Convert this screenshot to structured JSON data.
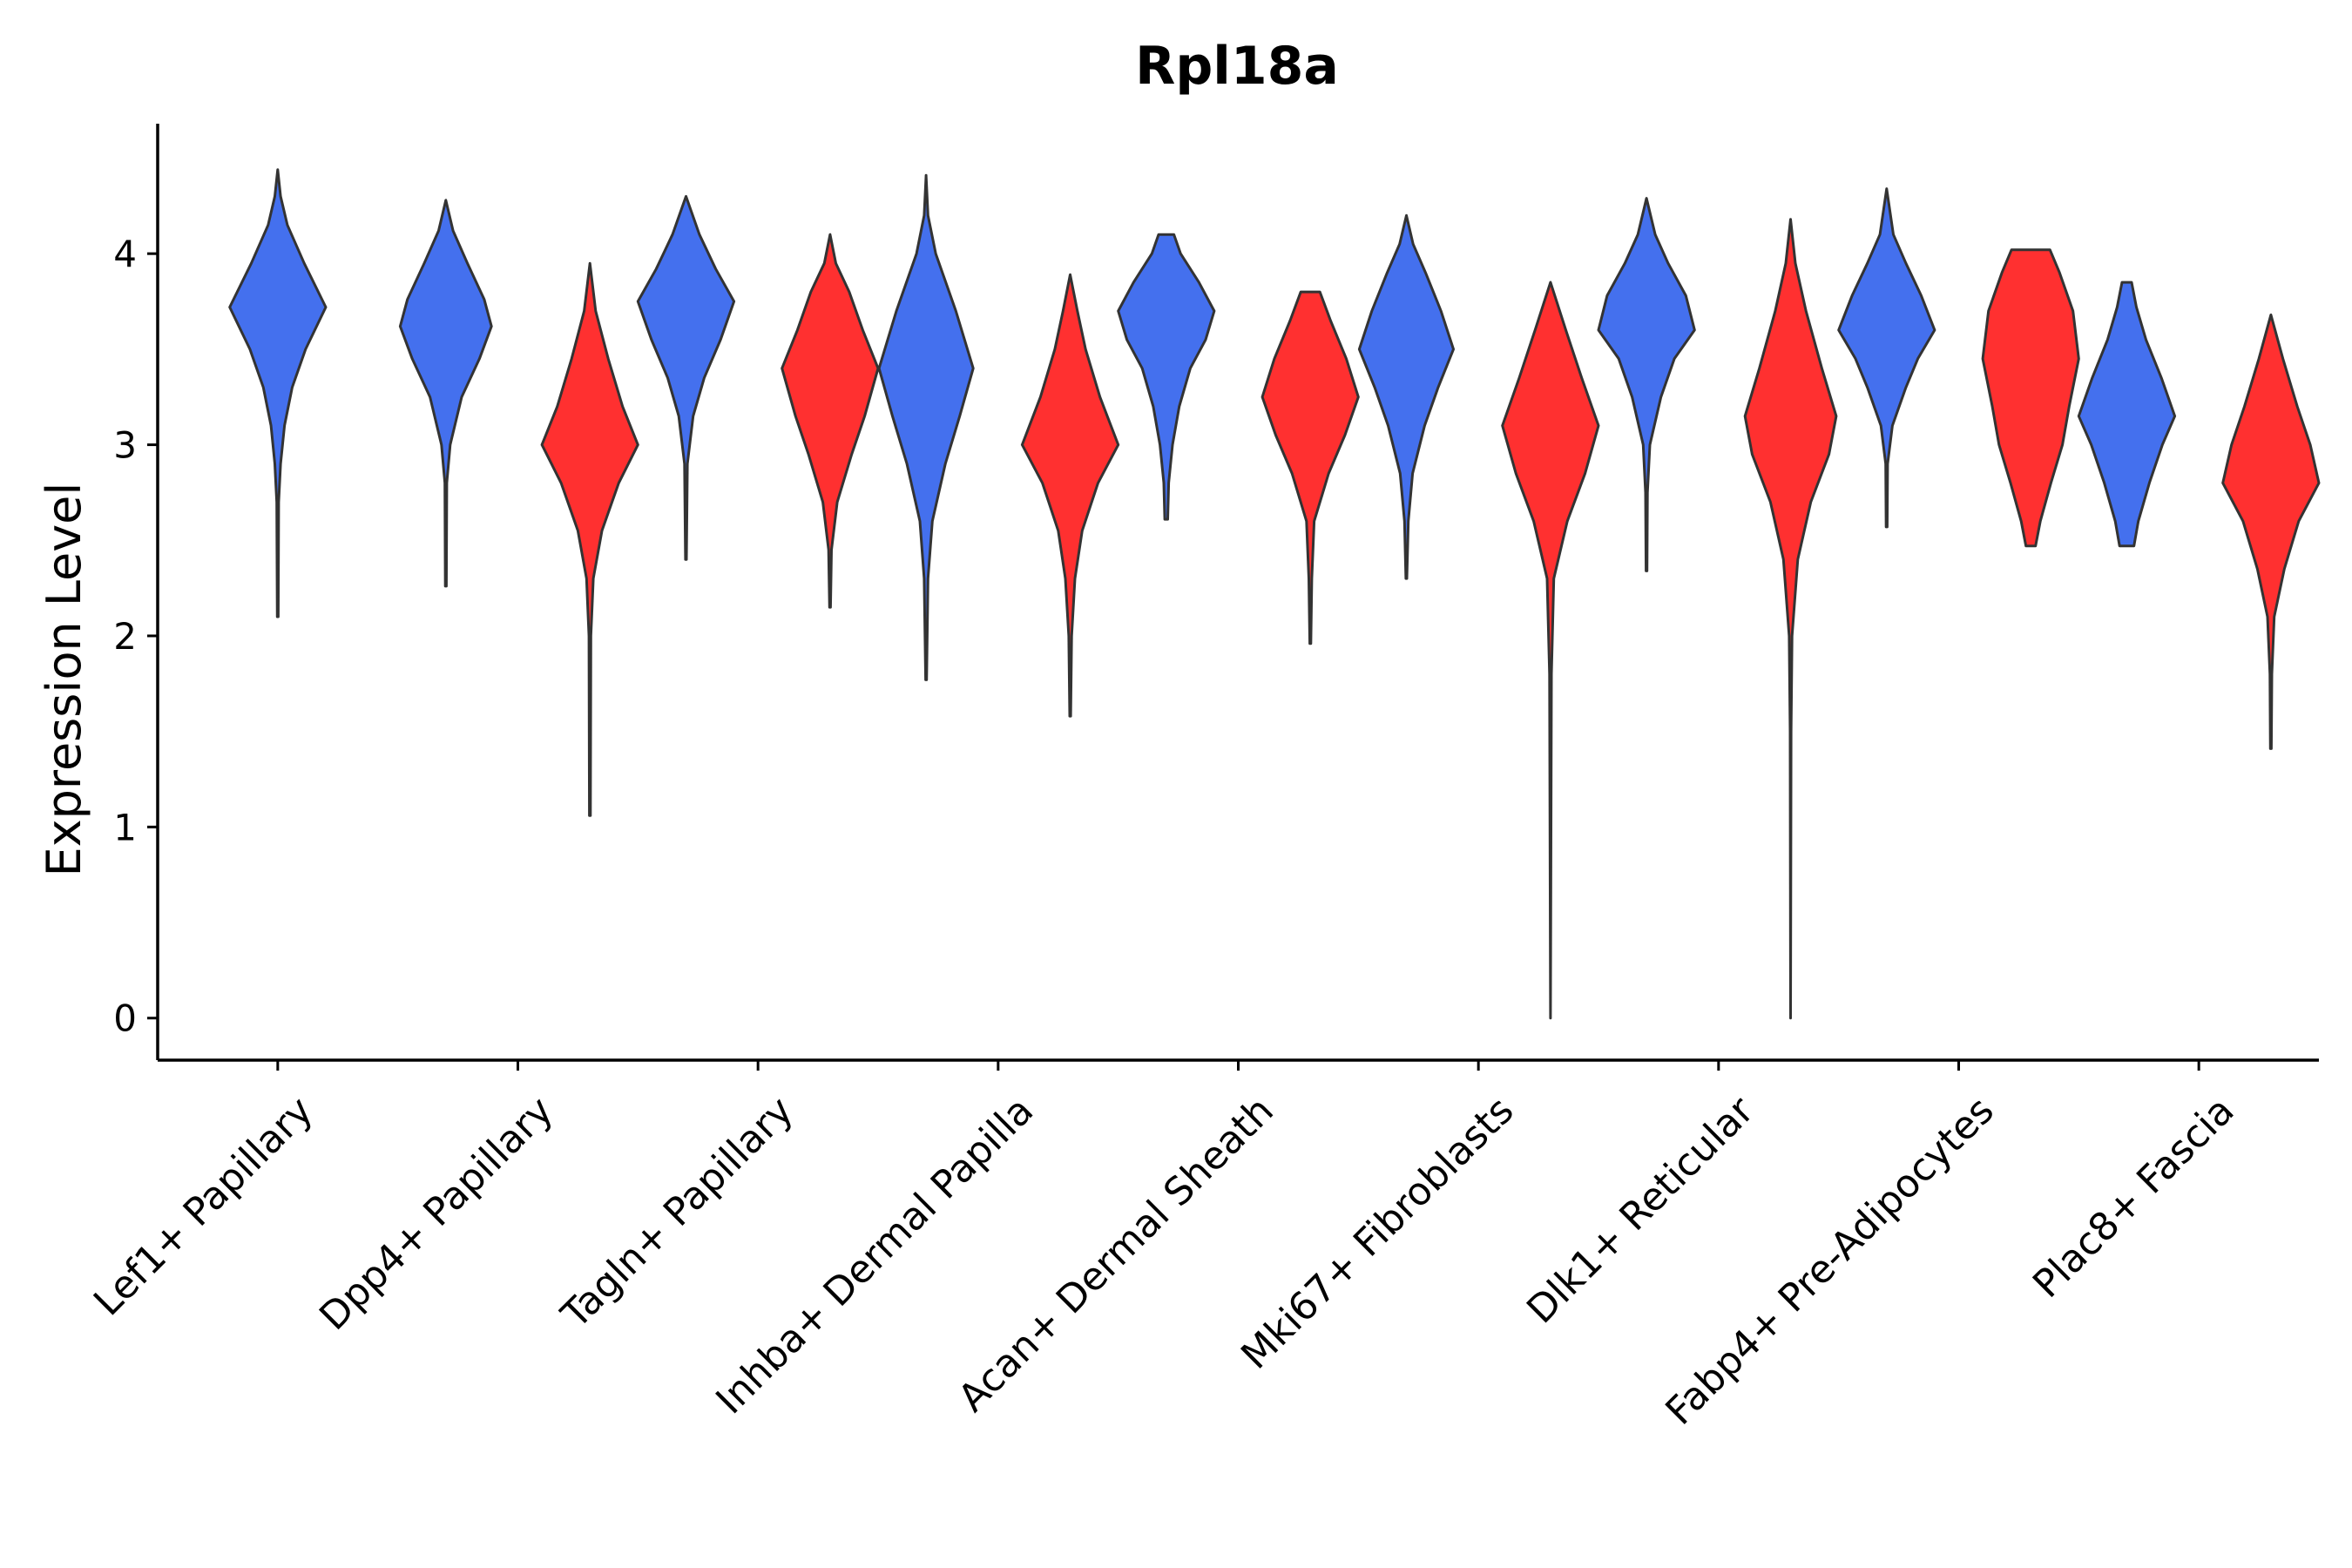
{
  "chart_data": {
    "type": "violin",
    "title": "Rpl18a",
    "xlabel": "",
    "ylabel": "Expression Level",
    "ylim": [
      -0.22,
      4.68
    ],
    "yticks": [
      0,
      1,
      2,
      3,
      4
    ],
    "grid": false,
    "legend": "none",
    "colors": {
      "group1": "#4470ee",
      "group2": "#ff3030",
      "outline": "#333333"
    },
    "categories": [
      "Lef1+ Papillary",
      "Dpp4+ Papillary",
      "Tagln+ Papillary",
      "Inhba+ Dermal Papilla",
      "Acan+ Dermal Sheath",
      "Mki67+ Fibroblasts",
      "Dlk1+ Reticular",
      "Fabp4+ Pre-Adipocytes",
      "Plac8+ Fascia"
    ],
    "series": [
      {
        "name": "group1",
        "color": "#4470ee",
        "violins": [
          {
            "category": "Lef1+ Papillary",
            "profile": [
              [
                2.1,
                0.01
              ],
              [
                2.7,
                0.02
              ],
              [
                2.9,
                0.06
              ],
              [
                3.1,
                0.14
              ],
              [
                3.3,
                0.3
              ],
              [
                3.5,
                0.58
              ],
              [
                3.72,
                1.0
              ],
              [
                3.95,
                0.55
              ],
              [
                4.15,
                0.2
              ],
              [
                4.3,
                0.06
              ],
              [
                4.44,
                0.0
              ]
            ]
          },
          {
            "category": "Dpp4+ Papillary",
            "profile": [
              [
                2.26,
                0.01
              ],
              [
                2.8,
                0.02
              ],
              [
                3.0,
                0.09
              ],
              [
                3.25,
                0.33
              ],
              [
                3.45,
                0.7
              ],
              [
                3.62,
                0.95
              ],
              [
                3.76,
                0.8
              ],
              [
                3.95,
                0.45
              ],
              [
                4.12,
                0.15
              ],
              [
                4.28,
                0.0
              ]
            ]
          },
          {
            "category": "Tagln+ Papillary",
            "profile": [
              [
                2.4,
                0.01
              ],
              [
                2.9,
                0.03
              ],
              [
                3.15,
                0.15
              ],
              [
                3.35,
                0.38
              ],
              [
                3.55,
                0.72
              ],
              [
                3.75,
                1.0
              ],
              [
                3.92,
                0.62
              ],
              [
                4.1,
                0.28
              ],
              [
                4.3,
                0.0
              ]
            ]
          },
          {
            "category": "Inhba+ Dermal Papilla",
            "profile": [
              [
                1.77,
                0.01
              ],
              [
                2.3,
                0.04
              ],
              [
                2.6,
                0.13
              ],
              [
                2.9,
                0.4
              ],
              [
                3.15,
                0.7
              ],
              [
                3.4,
                0.98
              ],
              [
                3.7,
                0.62
              ],
              [
                4.0,
                0.2
              ],
              [
                4.2,
                0.04
              ],
              [
                4.41,
                0.0
              ]
            ]
          },
          {
            "category": "Acan+ Dermal Sheath",
            "profile": [
              [
                2.61,
                0.03
              ],
              [
                2.8,
                0.05
              ],
              [
                3.0,
                0.13
              ],
              [
                3.2,
                0.27
              ],
              [
                3.4,
                0.5
              ],
              [
                3.55,
                0.82
              ],
              [
                3.7,
                1.0
              ],
              [
                3.85,
                0.68
              ],
              [
                4.0,
                0.3
              ],
              [
                4.1,
                0.16
              ]
            ]
          },
          {
            "category": "Mki67+ Fibroblasts",
            "profile": [
              [
                2.3,
                0.01
              ],
              [
                2.6,
                0.04
              ],
              [
                2.85,
                0.13
              ],
              [
                3.1,
                0.38
              ],
              [
                3.3,
                0.66
              ],
              [
                3.5,
                0.98
              ],
              [
                3.7,
                0.72
              ],
              [
                3.9,
                0.4
              ],
              [
                4.05,
                0.14
              ],
              [
                4.2,
                0.0
              ]
            ]
          },
          {
            "category": "Dlk1+ Reticular",
            "profile": [
              [
                2.34,
                0.01
              ],
              [
                2.75,
                0.02
              ],
              [
                3.0,
                0.07
              ],
              [
                3.25,
                0.3
              ],
              [
                3.45,
                0.58
              ],
              [
                3.6,
                1.0
              ],
              [
                3.78,
                0.82
              ],
              [
                3.95,
                0.45
              ],
              [
                4.1,
                0.18
              ],
              [
                4.29,
                0.0
              ]
            ]
          },
          {
            "category": "Fabp4+ Pre-Adipocytes",
            "profile": [
              [
                2.57,
                0.01
              ],
              [
                2.9,
                0.02
              ],
              [
                3.1,
                0.12
              ],
              [
                3.3,
                0.4
              ],
              [
                3.45,
                0.65
              ],
              [
                3.6,
                1.0
              ],
              [
                3.78,
                0.72
              ],
              [
                3.95,
                0.4
              ],
              [
                4.1,
                0.14
              ],
              [
                4.34,
                0.0
              ]
            ]
          },
          {
            "category": "Plac8+ Fascia",
            "profile": [
              [
                2.47,
                0.15
              ],
              [
                2.6,
                0.24
              ],
              [
                2.8,
                0.47
              ],
              [
                3.0,
                0.74
              ],
              [
                3.15,
                1.0
              ],
              [
                3.35,
                0.72
              ],
              [
                3.55,
                0.4
              ],
              [
                3.72,
                0.2
              ],
              [
                3.85,
                0.1
              ]
            ]
          }
        ]
      },
      {
        "name": "group2",
        "color": "#ff3030",
        "violins": [
          {
            "category": "Dpp4+ Papillary",
            "profile": [
              [
                1.06,
                0.01
              ],
              [
                2.0,
                0.02
              ],
              [
                2.3,
                0.07
              ],
              [
                2.55,
                0.25
              ],
              [
                2.8,
                0.6
              ],
              [
                3.0,
                1.0
              ],
              [
                3.2,
                0.68
              ],
              [
                3.45,
                0.38
              ],
              [
                3.7,
                0.12
              ],
              [
                3.95,
                0.0
              ]
            ]
          },
          {
            "category": "Tagln+ Papillary",
            "profile": [
              [
                2.15,
                0.01
              ],
              [
                2.45,
                0.03
              ],
              [
                2.7,
                0.15
              ],
              [
                2.95,
                0.45
              ],
              [
                3.15,
                0.72
              ],
              [
                3.4,
                1.0
              ],
              [
                3.6,
                0.68
              ],
              [
                3.8,
                0.4
              ],
              [
                3.95,
                0.12
              ],
              [
                4.1,
                0.0
              ]
            ]
          },
          {
            "category": "Inhba+ Dermal Papilla",
            "profile": [
              [
                1.58,
                0.01
              ],
              [
                2.0,
                0.03
              ],
              [
                2.3,
                0.1
              ],
              [
                2.55,
                0.25
              ],
              [
                2.8,
                0.58
              ],
              [
                3.0,
                1.0
              ],
              [
                3.25,
                0.62
              ],
              [
                3.5,
                0.32
              ],
              [
                3.7,
                0.15
              ],
              [
                3.89,
                0.0
              ]
            ]
          },
          {
            "category": "Acan+ Dermal Sheath",
            "profile": [
              [
                1.96,
                0.01
              ],
              [
                2.3,
                0.03
              ],
              [
                2.6,
                0.08
              ],
              [
                2.85,
                0.38
              ],
              [
                3.05,
                0.72
              ],
              [
                3.25,
                1.0
              ],
              [
                3.45,
                0.75
              ],
              [
                3.65,
                0.42
              ],
              [
                3.8,
                0.2
              ]
            ]
          },
          {
            "category": "Mki67+ Fibroblasts",
            "profile": [
              [
                0.0,
                0.0
              ],
              [
                1.8,
                0.02
              ],
              [
                2.3,
                0.07
              ],
              [
                2.6,
                0.35
              ],
              [
                2.85,
                0.72
              ],
              [
                3.1,
                1.0
              ],
              [
                3.35,
                0.65
              ],
              [
                3.6,
                0.32
              ],
              [
                3.85,
                0.0
              ]
            ]
          },
          {
            "category": "Dlk1+ Reticular",
            "profile": [
              [
                0.0,
                0.0
              ],
              [
                1.5,
                0.01
              ],
              [
                2.0,
                0.03
              ],
              [
                2.4,
                0.15
              ],
              [
                2.7,
                0.42
              ],
              [
                2.95,
                0.8
              ],
              [
                3.15,
                0.95
              ],
              [
                3.4,
                0.65
              ],
              [
                3.7,
                0.32
              ],
              [
                3.95,
                0.1
              ],
              [
                4.18,
                0.0
              ]
            ]
          },
          {
            "category": "Fabp4+ Pre-Adipocytes",
            "profile": [
              [
                2.47,
                0.1
              ],
              [
                2.6,
                0.2
              ],
              [
                2.8,
                0.42
              ],
              [
                3.0,
                0.66
              ],
              [
                3.2,
                0.8
              ],
              [
                3.45,
                1.0
              ],
              [
                3.7,
                0.88
              ],
              [
                3.9,
                0.6
              ],
              [
                4.02,
                0.4
              ]
            ]
          },
          {
            "category": "Plac8+ Fascia",
            "profile": [
              [
                1.41,
                0.01
              ],
              [
                1.8,
                0.02
              ],
              [
                2.1,
                0.07
              ],
              [
                2.35,
                0.28
              ],
              [
                2.6,
                0.58
              ],
              [
                2.8,
                1.0
              ],
              [
                3.0,
                0.82
              ],
              [
                3.2,
                0.55
              ],
              [
                3.45,
                0.25
              ],
              [
                3.68,
                0.0
              ]
            ]
          }
        ]
      }
    ]
  }
}
